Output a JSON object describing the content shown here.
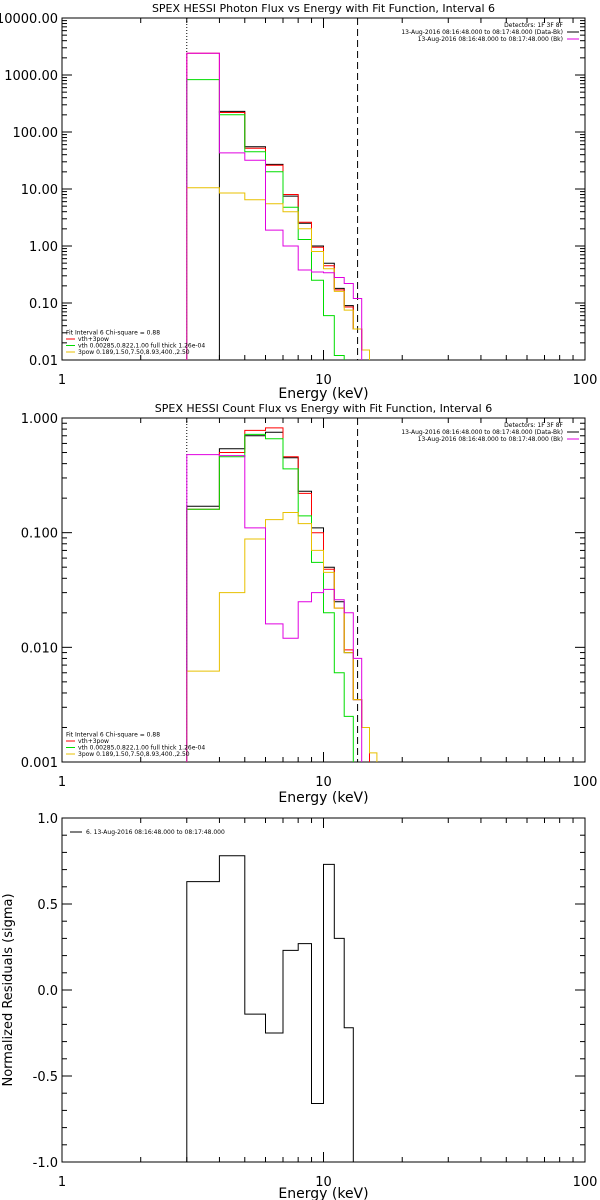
{
  "chart_data": [
    {
      "type": "line",
      "title": "SPEX HESSI Photon Flux vs Energy with Fit Function, Interval 6",
      "xlabel": "Energy (keV)",
      "ylabel": "",
      "xscale": "log",
      "yscale": "log",
      "xlim": [
        1,
        100
      ],
      "ylim": [
        0.01,
        10000
      ],
      "x_ticks": [
        "1",
        "10",
        "100"
      ],
      "y_ticks": [
        "10000.00",
        "1000.00",
        "100.00",
        "10.00",
        "1.00",
        "0.10",
        "0.01"
      ],
      "y_tick_values": [
        10000,
        1000,
        100,
        10,
        1,
        0.1,
        0.01
      ],
      "vlines": [
        {
          "x": 3.0,
          "style": "dotted"
        },
        {
          "x": 13.5,
          "style": "dashed"
        }
      ],
      "legend_top": {
        "placement": "top-right",
        "lines": [
          {
            "text": "Detectors: 1F 3F 8F",
            "color": ""
          },
          {
            "text": "13-Aug-2016 08:16:48.000 to 08:17:48.000 (Data-Bk)",
            "color": "#000000"
          },
          {
            "text": "13-Aug-2016 08:16:48.000 to 08:17:48.000 (Bk)",
            "color": "#e000e0"
          }
        ]
      },
      "legend_bottom": {
        "placement": "bottom-left",
        "lines": [
          {
            "text": "Fit Interval  6   Chi-square = 0.88",
            "color": ""
          },
          {
            "text": "vth+3pow",
            "color": "#ff0000"
          },
          {
            "text": "vth 0.00285,0.822,1.00  full thick 1.26e-04",
            "color": "#00dd00"
          },
          {
            "text": "3pow 0.189,1.50,7.50,8.93,400.,2.50",
            "color": "#e8c000"
          }
        ]
      },
      "bin_edges": [
        3,
        4,
        5,
        6,
        7,
        8,
        9,
        10,
        11,
        12,
        13,
        14,
        15,
        16,
        17,
        18
      ],
      "series": [
        {
          "name": "13-Aug-2016 08:16:48.000 to 08:17:48.000 (Data-Bk)",
          "color": "#000000",
          "values": [
            null,
            230,
            55,
            27,
            7.5,
            2.5,
            1.0,
            0.5,
            0.18,
            0.09,
            0.035,
            0.015,
            null,
            null,
            null
          ]
        },
        {
          "name": "vth+3pow",
          "color": "#ff0000",
          "values": [
            2400,
            220,
            52,
            26,
            8.0,
            2.6,
            0.95,
            0.45,
            0.17,
            0.085,
            0.035,
            0.015,
            null,
            null,
            null
          ]
        },
        {
          "name": "vth 0.00285,0.822,1.00  full thick 1.26e-04",
          "color": "#00dd00",
          "values": [
            830,
            200,
            45,
            20,
            4.8,
            1.3,
            0.25,
            0.06,
            0.012,
            null,
            null,
            null,
            null,
            null,
            null
          ]
        },
        {
          "name": "3pow 0.189,1.50,7.50,8.93,400.,2.50",
          "color": "#e8c000",
          "values": [
            10.5,
            8.5,
            6.5,
            5.5,
            4.0,
            2.0,
            0.8,
            0.4,
            0.16,
            0.075,
            0.035,
            0.015,
            null,
            null,
            null
          ]
        },
        {
          "name": "13-Aug-2016 08:16:48.000 to 08:17:48.000 (Bk)",
          "color": "#e000e0",
          "values": [
            2400,
            43,
            32,
            1.9,
            1.0,
            0.38,
            0.35,
            0.34,
            0.28,
            0.22,
            0.12,
            null,
            null,
            null,
            null
          ]
        }
      ]
    },
    {
      "type": "line",
      "title": "SPEX HESSI Count Flux vs Energy with Fit Function, Interval 6",
      "xlabel": "Energy (keV)",
      "ylabel": "",
      "xscale": "log",
      "yscale": "log",
      "xlim": [
        1,
        100
      ],
      "ylim": [
        0.001,
        1
      ],
      "x_ticks": [
        "1",
        "10",
        "100"
      ],
      "y_ticks": [
        "1.000",
        "0.100",
        "0.010",
        "0.001"
      ],
      "y_tick_values": [
        1,
        0.1,
        0.01,
        0.001
      ],
      "vlines": [
        {
          "x": 3.0,
          "style": "dotted"
        },
        {
          "x": 13.5,
          "style": "dashed"
        }
      ],
      "legend_top": {
        "placement": "top-right",
        "lines": [
          {
            "text": "Detectors: 1F 3F 8F",
            "color": ""
          },
          {
            "text": "13-Aug-2016 08:16:48.000 to 08:17:48.000 (Data-Bk)",
            "color": "#000000"
          },
          {
            "text": "13-Aug-2016 08:16:48.000 to 08:17:48.000 (Bk)",
            "color": "#e000e0"
          }
        ]
      },
      "legend_bottom": {
        "placement": "bottom-left",
        "lines": [
          {
            "text": "Fit Interval  6   Chi-square = 0.88",
            "color": ""
          },
          {
            "text": "vth+3pow",
            "color": "#ff0000"
          },
          {
            "text": "vth 0.00285,0.822,1.00  full thick 1.26e-04",
            "color": "#00dd00"
          },
          {
            "text": "3pow 0.189,1.50,7.50,8.93,400.,2.50",
            "color": "#e8c000"
          }
        ]
      },
      "bin_edges": [
        3,
        4,
        5,
        6,
        7,
        8,
        9,
        10,
        11,
        12,
        13,
        14,
        15,
        16,
        17,
        18
      ],
      "series": [
        {
          "name": "13-Aug-2016 08:16:48.000 to 08:17:48.000 (Data-Bk)",
          "color": "#000000",
          "values": [
            0.17,
            0.54,
            0.7,
            0.75,
            0.45,
            0.23,
            0.11,
            0.05,
            0.025,
            0.009,
            0.0035,
            0.002,
            null,
            null,
            null
          ]
        },
        {
          "name": "vth+3pow",
          "color": "#ff0000",
          "values": [
            0.16,
            0.5,
            0.78,
            0.82,
            0.46,
            0.22,
            0.1,
            0.048,
            0.022,
            0.0095,
            0.0035,
            0.002,
            null,
            null,
            null
          ]
        },
        {
          "name": "vth 0.00285,0.822,1.00  full thick 1.26e-04",
          "color": "#00dd00",
          "values": [
            0.16,
            0.46,
            0.72,
            0.66,
            0.36,
            0.14,
            0.055,
            0.02,
            0.006,
            0.0025,
            null,
            null,
            null,
            null,
            null
          ]
        },
        {
          "name": "3pow 0.189,1.50,7.50,8.93,400.,2.50",
          "color": "#e8c000",
          "values": [
            0.0062,
            0.03,
            0.088,
            0.13,
            0.15,
            0.12,
            0.07,
            0.045,
            0.022,
            0.009,
            0.0035,
            0.002,
            0.0012,
            null,
            null
          ]
        },
        {
          "name": "13-Aug-2016 08:16:48.000 to 08:17:48.000 (Bk)",
          "color": "#e000e0",
          "values": [
            0.48,
            0.47,
            0.11,
            0.016,
            0.012,
            0.025,
            0.03,
            0.032,
            0.026,
            0.02,
            0.008,
            null,
            null,
            null,
            null
          ]
        }
      ]
    },
    {
      "type": "line",
      "title": "",
      "xlabel": "Energy (keV)",
      "ylabel": "Normalized Residuals (sigma)",
      "xscale": "log",
      "yscale": "linear",
      "xlim": [
        1,
        100
      ],
      "ylim": [
        -1.0,
        1.0
      ],
      "x_ticks": [
        "1",
        "10",
        "100"
      ],
      "y_ticks": [
        "1.0",
        "0.5",
        "0.0",
        "-0.5",
        "-1.0"
      ],
      "y_tick_values": [
        1.0,
        0.5,
        0.0,
        -0.5,
        -1.0
      ],
      "legend_top": {
        "placement": "top-left",
        "lines": [
          {
            "text": "6. 13-Aug-2016 08:16:48.000 to 08:17:48.000",
            "color": "#000000"
          }
        ]
      },
      "bin_edges": [
        3,
        4,
        5,
        6,
        7,
        8,
        9,
        10,
        11,
        12,
        13,
        14
      ],
      "series": [
        {
          "name": "6. 13-Aug-2016 08:16:48.000 to 08:17:48.000",
          "color": "#000000",
          "values": [
            0.63,
            0.78,
            -0.14,
            -0.25,
            0.23,
            0.27,
            -0.66,
            0.73,
            0.3,
            -0.22,
            null
          ]
        }
      ]
    }
  ]
}
